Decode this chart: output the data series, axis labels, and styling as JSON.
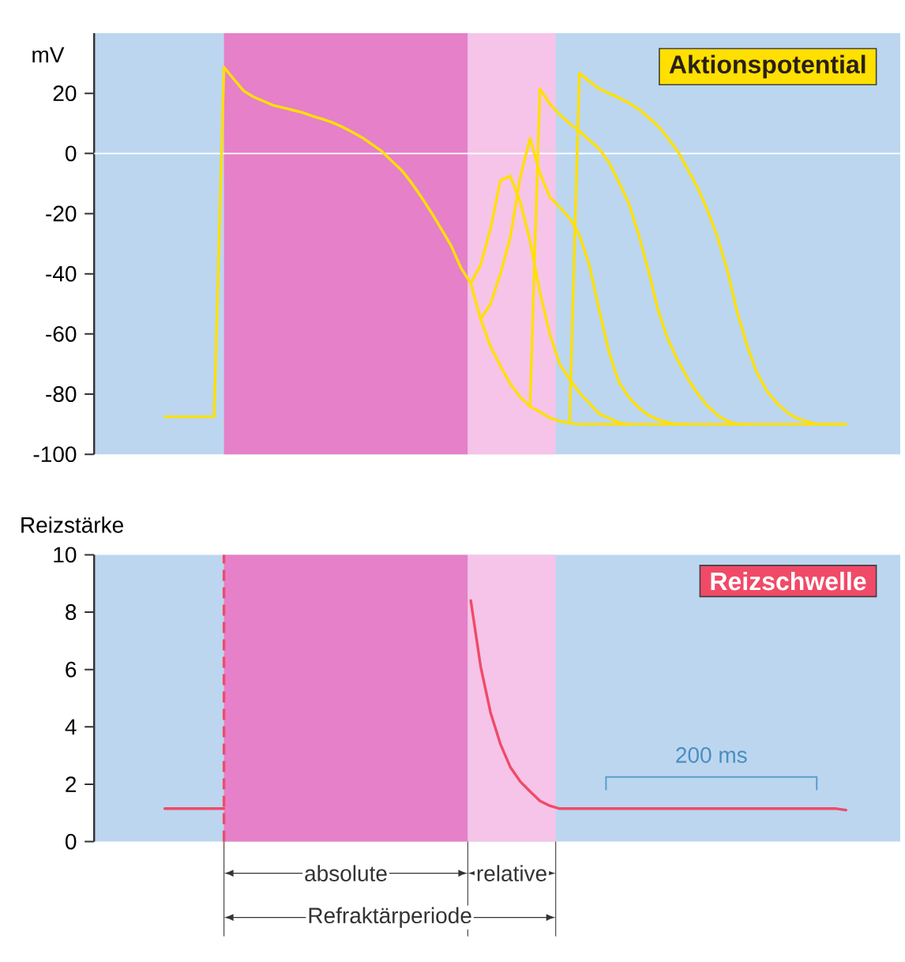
{
  "chart_data": [
    {
      "type": "line",
      "title": "Aktionspotential",
      "ylabel": "mV",
      "ylim": [
        -100,
        40
      ],
      "yticks": [
        -100,
        -80,
        -60,
        -40,
        -20,
        0,
        20
      ],
      "tick_labels": "y",
      "categories": [
        null,
        null,
        null,
        null,
        null,
        null,
        null,
        null,
        null,
        null,
        null,
        null,
        null,
        null,
        null,
        null,
        null,
        null,
        null,
        null,
        null,
        null,
        null,
        null,
        null,
        null,
        null,
        null,
        null,
        null,
        null,
        null,
        null,
        null,
        null,
        null,
        null,
        null,
        null,
        null,
        null,
        null,
        null,
        null,
        null,
        null,
        null,
        null,
        null,
        null,
        null,
        null,
        null,
        null,
        null,
        null,
        null,
        null,
        null,
        null,
        null,
        null,
        null,
        null,
        null,
        null,
        null,
        null,
        null,
        null
      ],
      "ref_lines": [
        {
          "axis": "y",
          "value": 0,
          "color": "#ffffff"
        }
      ],
      "series": [
        {
          "color": "#ffe000",
          "values": [
            -87.5,
            -87.5,
            -87.5,
            -87.5,
            -87.5,
            -87.5,
            28.7,
            24.7,
            20.8,
            18.8,
            17.4,
            16.0,
            15.2,
            14.4,
            13.6,
            12.4,
            11.4,
            10.3,
            8.8,
            7.1,
            5.3,
            3.0,
            0.7,
            -2.5,
            -5.6,
            -9.8,
            -14.5,
            -19.6,
            -25,
            -30.6,
            -38,
            -43.2,
            -55.1,
            -64.2,
            -70.6,
            -76.6,
            -80.9,
            -84.1,
            -85.9,
            -87.9,
            -89,
            -89.6,
            -90,
            -90,
            -90,
            -90,
            -90,
            -90,
            -90,
            -90,
            -90,
            -90,
            -90,
            -90,
            -90,
            -90,
            -90,
            -90,
            -90,
            -90,
            -90,
            -90,
            -90,
            -90,
            -90,
            -90,
            -90,
            -90,
            -90,
            -90
          ]
        },
        {
          "color": "#ffe000",
          "values": [
            null,
            null,
            null,
            null,
            null,
            null,
            null,
            null,
            null,
            null,
            null,
            null,
            null,
            null,
            null,
            null,
            null,
            null,
            null,
            null,
            null,
            null,
            null,
            null,
            null,
            null,
            null,
            null,
            null,
            null,
            null,
            -43.2,
            -37,
            -25,
            -9,
            -7.5,
            -16,
            -29,
            -46,
            -60,
            -70,
            -75,
            -79.5,
            -83,
            -86.5,
            -88,
            -89.5,
            -90,
            null,
            null,
            null,
            null,
            null,
            null,
            null,
            null,
            null,
            null,
            null,
            null,
            null,
            null,
            null,
            null,
            null,
            null,
            null,
            null,
            null,
            null
          ]
        },
        {
          "color": "#ffe000",
          "values": [
            null,
            null,
            null,
            null,
            null,
            null,
            null,
            null,
            null,
            null,
            null,
            null,
            null,
            null,
            null,
            null,
            null,
            null,
            null,
            null,
            null,
            null,
            null,
            null,
            null,
            null,
            null,
            null,
            null,
            null,
            null,
            null,
            -55.1,
            -50,
            -40,
            -28,
            -8,
            5,
            -6.5,
            -14.5,
            -17.8,
            -21.5,
            -27,
            -37,
            -52,
            -66,
            -76,
            -81,
            -84.5,
            -87,
            -88.5,
            -89.5,
            -90,
            -90,
            null,
            null,
            null,
            null,
            null,
            null,
            null,
            null,
            null,
            null,
            null,
            null,
            null,
            null,
            null,
            null
          ]
        },
        {
          "color": "#ffe000",
          "values": [
            null,
            null,
            null,
            null,
            null,
            null,
            null,
            null,
            null,
            null,
            null,
            null,
            null,
            null,
            null,
            null,
            null,
            null,
            null,
            null,
            null,
            null,
            null,
            null,
            null,
            null,
            null,
            null,
            null,
            null,
            null,
            null,
            null,
            null,
            null,
            null,
            null,
            -84.1,
            21.5,
            16.5,
            13,
            10,
            7.5,
            4.5,
            1.6,
            -3,
            -9.5,
            -16.5,
            -27,
            -39,
            -52.5,
            -62,
            -69,
            -75,
            -80,
            -84,
            -87,
            -89,
            -90,
            -90,
            null,
            null,
            null,
            null,
            null,
            null,
            null,
            null,
            null,
            null
          ]
        },
        {
          "color": "#ffe000",
          "values": [
            null,
            null,
            null,
            null,
            null,
            null,
            null,
            null,
            null,
            null,
            null,
            null,
            null,
            null,
            null,
            null,
            null,
            null,
            null,
            null,
            null,
            null,
            null,
            null,
            null,
            null,
            null,
            null,
            null,
            null,
            null,
            null,
            null,
            null,
            null,
            null,
            null,
            null,
            null,
            null,
            null,
            -89.6,
            26.7,
            24,
            21.5,
            20,
            18.5,
            16.8,
            14.8,
            12,
            9,
            5,
            0.5,
            -5.5,
            -11.5,
            -19,
            -28,
            -39,
            -53,
            -64,
            -73,
            -79,
            -83,
            -86,
            -88,
            -89,
            -90,
            -90,
            -90,
            -90
          ]
        }
      ]
    },
    {
      "type": "line",
      "title": "Reizschwelle",
      "ylabel": "Reizstärke",
      "ylim": [
        0,
        10
      ],
      "yticks": [
        0,
        2,
        4,
        6,
        8,
        10
      ],
      "tick_labels": "y",
      "categories": [
        null,
        null,
        null,
        null,
        null,
        null,
        null,
        null,
        null,
        null,
        null,
        null,
        null,
        null,
        null,
        null,
        null,
        null,
        null,
        null,
        null,
        null,
        null,
        null,
        null,
        null,
        null,
        null,
        null,
        null,
        null,
        null,
        null,
        null,
        null,
        null,
        null,
        null,
        null,
        null,
        null,
        null,
        null,
        null,
        null,
        null,
        null,
        null,
        null,
        null,
        null,
        null,
        null,
        null,
        null,
        null,
        null,
        null,
        null,
        null,
        null,
        null,
        null,
        null,
        null,
        null,
        null,
        null,
        null,
        null
      ],
      "annotations": [
        "absolute",
        "relative",
        "Refraktärperiode",
        "200 ms"
      ],
      "series": [
        {
          "color": "#f04a68",
          "values": [
            1.15,
            1.15,
            1.15,
            1.15,
            1.15,
            1.15,
            1.15,
            null,
            null,
            null,
            null,
            null,
            null,
            null,
            null,
            null,
            null,
            null,
            null,
            null,
            null,
            null,
            null,
            null,
            null,
            null,
            null,
            null,
            null,
            null,
            null,
            8.4,
            6.1,
            4.5,
            3.4,
            2.6,
            2.1,
            1.75,
            1.42,
            1.25,
            1.15,
            1.15,
            1.15,
            1.15,
            1.15,
            1.15,
            1.15,
            1.15,
            1.15,
            1.15,
            1.15,
            1.15,
            1.15,
            1.15,
            1.15,
            1.15,
            1.15,
            1.15,
            1.15,
            1.15,
            1.15,
            1.15,
            1.15,
            1.15,
            1.15,
            1.15,
            1.15,
            1.15,
            1.15,
            1.1
          ]
        }
      ]
    }
  ]
}
